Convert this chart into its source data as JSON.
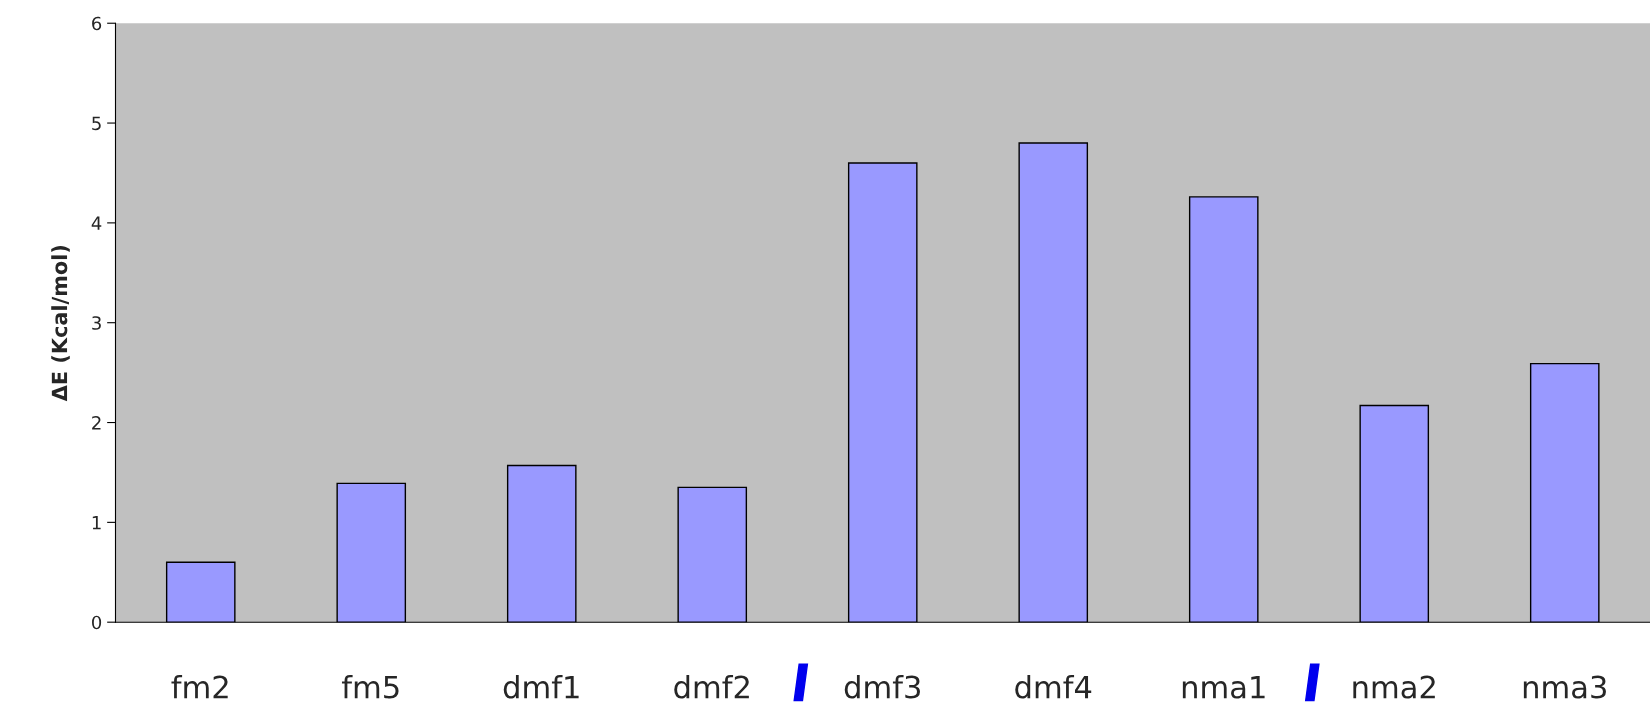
{
  "chart_data": {
    "type": "bar",
    "ylabel": "ΔE (Kcal/mol)",
    "categories": [
      "fm2",
      "fm5",
      "dmf1",
      "dmf2",
      "dmf3",
      "dmf4",
      "nma1",
      "nma2",
      "nma3"
    ],
    "values": [
      0.6,
      1.39,
      1.57,
      1.35,
      4.6,
      4.8,
      4.26,
      2.17,
      2.59
    ],
    "color": "#9999ff",
    "ylim": [
      0,
      6
    ],
    "yticks": [
      0,
      1,
      2,
      3,
      4,
      5,
      6
    ],
    "grid": false
  }
}
